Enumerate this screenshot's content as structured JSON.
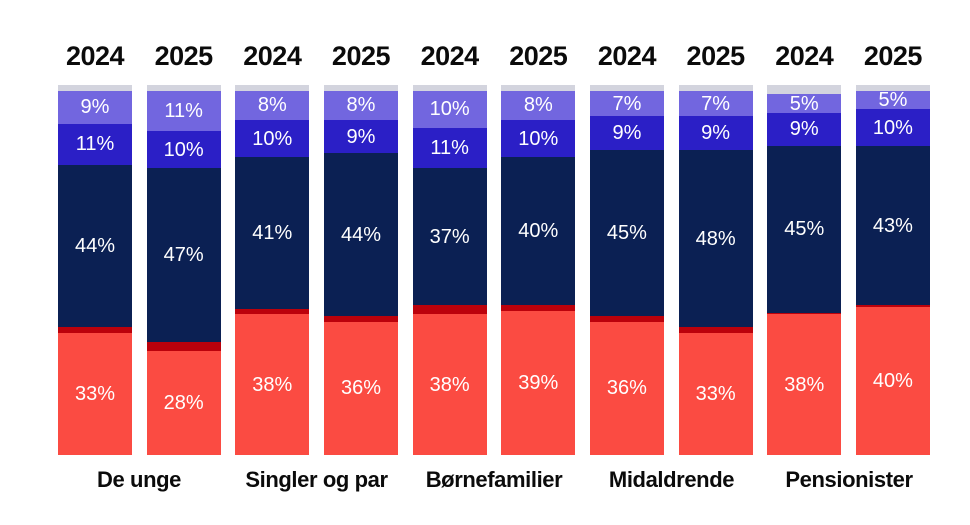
{
  "chart_data": {
    "type": "bar",
    "stacked": true,
    "value_unit": "%",
    "ylim": [
      0,
      100
    ],
    "grid": false,
    "legend": "none",
    "segment_keys_bottom_to_top": [
      "red",
      "dark_red",
      "dark_blue",
      "blue",
      "light_purple",
      "grey"
    ],
    "labeled_segments": [
      "red",
      "dark_blue",
      "blue",
      "light_purple"
    ],
    "unlabeled_segments_estimated": true,
    "colors": {
      "red": "#FB4B42",
      "dark_red": "#BB010B",
      "dark_blue": "#0B2053",
      "blue": "#2B1FC6",
      "light_purple": "#7266DF",
      "grey": "#D3D4DE",
      "segment_label_text": "#FFFFFF",
      "heading_text": "#0B0B0B",
      "background": "#FFFFFF"
    },
    "groups": [
      {
        "label": "De unge",
        "bars": [
          {
            "year": "2024",
            "segments": {
              "red": 33,
              "dark_red": 1.5,
              "dark_blue": 44,
              "blue": 11,
              "light_purple": 9,
              "grey": 1.5
            }
          },
          {
            "year": "2025",
            "segments": {
              "red": 28,
              "dark_red": 2.5,
              "dark_blue": 47,
              "blue": 10,
              "light_purple": 11,
              "grey": 1.5
            }
          }
        ]
      },
      {
        "label": "Singler og par",
        "bars": [
          {
            "year": "2024",
            "segments": {
              "red": 38,
              "dark_red": 1.5,
              "dark_blue": 41,
              "blue": 10,
              "light_purple": 8,
              "grey": 1.5
            }
          },
          {
            "year": "2025",
            "segments": {
              "red": 36,
              "dark_red": 1.5,
              "dark_blue": 44,
              "blue": 9,
              "light_purple": 8,
              "grey": 1.5
            }
          }
        ]
      },
      {
        "label": "Børnefamilier",
        "bars": [
          {
            "year": "2024",
            "segments": {
              "red": 38,
              "dark_red": 2.5,
              "dark_blue": 37,
              "blue": 11,
              "light_purple": 10,
              "grey": 1.5
            }
          },
          {
            "year": "2025",
            "segments": {
              "red": 39,
              "dark_red": 1.5,
              "dark_blue": 40,
              "blue": 10,
              "light_purple": 8,
              "grey": 1.5
            }
          }
        ]
      },
      {
        "label": "Midaldrende",
        "bars": [
          {
            "year": "2024",
            "segments": {
              "red": 36,
              "dark_red": 1.5,
              "dark_blue": 45,
              "blue": 9,
              "light_purple": 7,
              "grey": 1.5
            }
          },
          {
            "year": "2025",
            "segments": {
              "red": 33,
              "dark_red": 1.5,
              "dark_blue": 48,
              "blue": 9,
              "light_purple": 7,
              "grey": 1.5
            }
          }
        ]
      },
      {
        "label": "Pensionister",
        "bars": [
          {
            "year": "2024",
            "segments": {
              "red": 38,
              "dark_red": 0.5,
              "dark_blue": 45,
              "blue": 9,
              "light_purple": 5,
              "grey": 2.5
            }
          },
          {
            "year": "2025",
            "segments": {
              "red": 40,
              "dark_red": 0.5,
              "dark_blue": 43,
              "blue": 10,
              "light_purple": 5,
              "grey": 1.5
            }
          }
        ]
      }
    ]
  }
}
